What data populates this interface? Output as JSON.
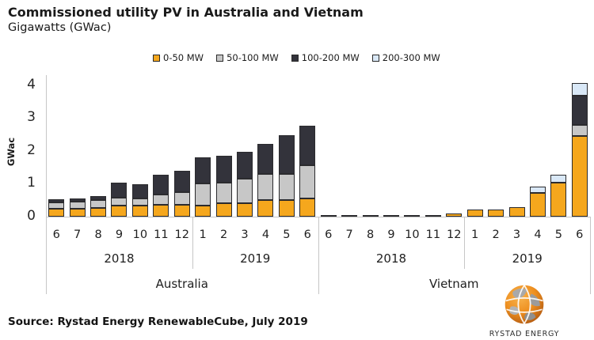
{
  "header": {
    "title": "Commissioned utility PV in Australia and Vietnam",
    "subtitle": "Gigawatts (GWac)"
  },
  "legend": [
    {
      "label": "0-50 MW",
      "color": "#F5A71D"
    },
    {
      "label": "50-100 MW",
      "color": "#C7C7C7"
    },
    {
      "label": "100-200 MW",
      "color": "#33333B"
    },
    {
      "label": "200-300 MW",
      "color": "#D9E8F7"
    }
  ],
  "chart_data": {
    "type": "bar",
    "stacked": true,
    "title": "Commissioned utility PV in Australia and Vietnam",
    "ylabel": "GWac",
    "ylim": [
      0,
      4
    ],
    "yticks": [
      0,
      1,
      2,
      3,
      4
    ],
    "grid": false,
    "legend_position": "top",
    "groups": [
      {
        "country": "Australia",
        "periods": [
          {
            "year": "2018",
            "months": [
              "6",
              "7",
              "8",
              "9",
              "10",
              "11",
              "12"
            ]
          },
          {
            "year": "2019",
            "months": [
              "1",
              "2",
              "3",
              "4",
              "5",
              "6"
            ]
          }
        ]
      },
      {
        "country": "Vietnam",
        "periods": [
          {
            "year": "2018",
            "months": [
              "6",
              "7",
              "8",
              "9",
              "10",
              "11",
              "12"
            ]
          },
          {
            "year": "2019",
            "months": [
              "1",
              "2",
              "3",
              "4",
              "5",
              "6"
            ]
          }
        ]
      }
    ],
    "categories": [
      "6",
      "7",
      "8",
      "9",
      "10",
      "11",
      "12",
      "1",
      "2",
      "3",
      "4",
      "5",
      "6",
      "6",
      "7",
      "8",
      "9",
      "10",
      "11",
      "12",
      "1",
      "2",
      "3",
      "4",
      "5",
      "6"
    ],
    "series": [
      {
        "name": "0-50 MW",
        "color": "#F5A71D",
        "values": [
          0.25,
          0.25,
          0.27,
          0.33,
          0.34,
          0.35,
          0.36,
          0.34,
          0.42,
          0.42,
          0.51,
          0.51,
          0.55,
          0.02,
          0.02,
          0.02,
          0.02,
          0.03,
          0.04,
          0.09,
          0.22,
          0.22,
          0.28,
          0.72,
          1.04,
          2.45
        ]
      },
      {
        "name": "50-100 MW",
        "color": "#C7C7C7",
        "values": [
          0.2,
          0.21,
          0.24,
          0.23,
          0.22,
          0.31,
          0.38,
          0.68,
          0.63,
          0.74,
          0.8,
          0.8,
          1.0,
          0,
          0,
          0,
          0,
          0,
          0,
          0,
          0,
          0,
          0,
          0,
          0,
          0.33
        ]
      },
      {
        "name": "100-200 MW",
        "color": "#33333B",
        "values": [
          0.1,
          0.09,
          0.12,
          0.46,
          0.43,
          0.6,
          0.64,
          0.8,
          0.82,
          0.83,
          0.91,
          1.17,
          1.2,
          0,
          0,
          0,
          0,
          0,
          0,
          0,
          0,
          0,
          0,
          0,
          0,
          0.88
        ]
      },
      {
        "name": "200-300 MW",
        "color": "#D9E8F7",
        "values": [
          0,
          0,
          0,
          0,
          0,
          0,
          0,
          0,
          0,
          0,
          0,
          0,
          0,
          0,
          0,
          0,
          0,
          0,
          0,
          0,
          0,
          0,
          0,
          0.2,
          0.24,
          0.38
        ]
      }
    ]
  },
  "footer": {
    "source": "Source: Rystad Energy RenewableCube, July 2019"
  },
  "logo": {
    "text": "RYSTAD ENERGY"
  }
}
